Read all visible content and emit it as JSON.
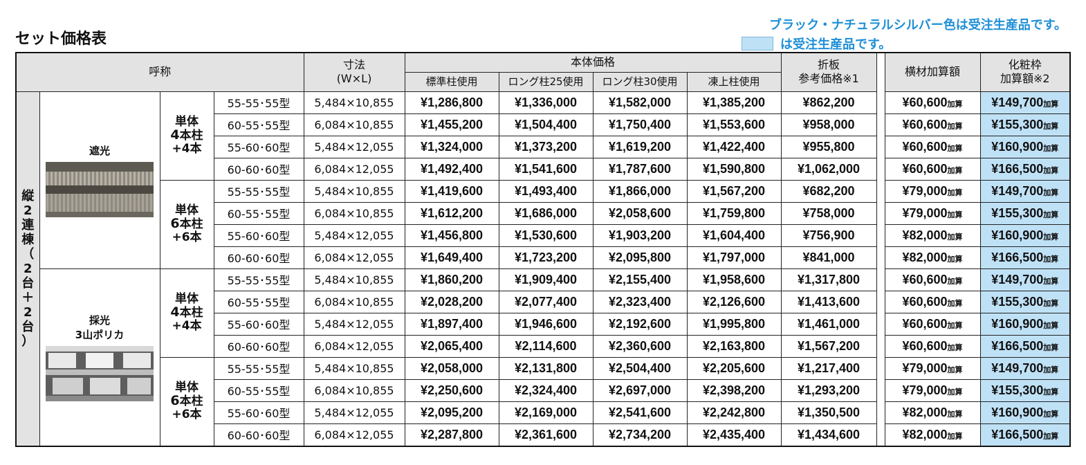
{
  "page": {
    "title": "セット価格表",
    "note_line1": "ブラック・ナチュラルシルバー色は受注生産品です。",
    "note_line2": "は受注生産品です。",
    "highlight_color": "#bfe1f6",
    "note_color": "#1e8fd6"
  },
  "header": {
    "name": "呼称",
    "size_line1": "寸法",
    "size_line2": "(W×L)",
    "body_price": "本体価格",
    "std": "標準柱使用",
    "long25": "ロング柱25使用",
    "long30": "ロング柱30使用",
    "frozen": "凍上柱使用",
    "orikata_line1": "折板",
    "orikata_line2": "参考価格※1",
    "beam": "横材加算額",
    "cosmetic_line1": "化粧枠",
    "cosmetic_line2": "加算額※2",
    "add_suffix": "加算"
  },
  "group_label": [
    "縦",
    "2",
    "連",
    "棟",
    "（",
    "2",
    "台",
    "＋",
    "2",
    "台",
    "）"
  ],
  "types": [
    {
      "label_line1": "遮光",
      "label_line2": "",
      "image_icon": "shading-panel-photo"
    },
    {
      "label_line1": "採光",
      "label_line2": "3山ポリカ",
      "image_icon": "polycarbonate-panel-photo"
    }
  ],
  "pillar_groups": [
    {
      "line1": "単体",
      "line2a": "4",
      "line2b": "本柱",
      "line3": "+4本"
    },
    {
      "line1": "単体",
      "line2a": "6",
      "line2b": "本柱",
      "line3": "+6本"
    },
    {
      "line1": "単体",
      "line2a": "4",
      "line2b": "本柱",
      "line3": "+4本"
    },
    {
      "line1": "単体",
      "line2a": "6",
      "line2b": "本柱",
      "line3": "+6本"
    }
  ],
  "rows": [
    {
      "model": "55-55･55型",
      "size": "5,484×10,855",
      "std": "¥1,286,800",
      "l25": "¥1,336,000",
      "l30": "¥1,582,000",
      "frz": "¥1,385,200",
      "ori": "¥862,200",
      "beam": "¥60,600",
      "cos": "¥149,700"
    },
    {
      "model": "60-55･55型",
      "size": "6,084×10,855",
      "std": "¥1,455,200",
      "l25": "¥1,504,400",
      "l30": "¥1,750,400",
      "frz": "¥1,553,600",
      "ori": "¥958,000",
      "beam": "¥60,600",
      "cos": "¥155,300"
    },
    {
      "model": "55-60･60型",
      "size": "5,484×12,055",
      "std": "¥1,324,000",
      "l25": "¥1,373,200",
      "l30": "¥1,619,200",
      "frz": "¥1,422,400",
      "ori": "¥955,800",
      "beam": "¥60,600",
      "cos": "¥160,900"
    },
    {
      "model": "60-60･60型",
      "size": "6,084×12,055",
      "std": "¥1,492,400",
      "l25": "¥1,541,600",
      "l30": "¥1,787,600",
      "frz": "¥1,590,800",
      "ori": "¥1,062,000",
      "beam": "¥60,600",
      "cos": "¥166,500"
    },
    {
      "model": "55-55･55型",
      "size": "5,484×10,855",
      "std": "¥1,419,600",
      "l25": "¥1,493,400",
      "l30": "¥1,866,000",
      "frz": "¥1,567,200",
      "ori": "¥682,200",
      "beam": "¥79,000",
      "cos": "¥149,700"
    },
    {
      "model": "60-55･55型",
      "size": "6,084×10,855",
      "std": "¥1,612,200",
      "l25": "¥1,686,000",
      "l30": "¥2,058,600",
      "frz": "¥1,759,800",
      "ori": "¥758,000",
      "beam": "¥79,000",
      "cos": "¥155,300"
    },
    {
      "model": "55-60･60型",
      "size": "5,484×12,055",
      "std": "¥1,456,800",
      "l25": "¥1,530,600",
      "l30": "¥1,903,200",
      "frz": "¥1,604,400",
      "ori": "¥756,900",
      "beam": "¥82,000",
      "cos": "¥160,900"
    },
    {
      "model": "60-60･60型",
      "size": "6,084×12,055",
      "std": "¥1,649,400",
      "l25": "¥1,723,200",
      "l30": "¥2,095,800",
      "frz": "¥1,797,000",
      "ori": "¥841,000",
      "beam": "¥82,000",
      "cos": "¥166,500"
    },
    {
      "model": "55-55･55型",
      "size": "5,484×10,855",
      "std": "¥1,860,200",
      "l25": "¥1,909,400",
      "l30": "¥2,155,400",
      "frz": "¥1,958,600",
      "ori": "¥1,317,800",
      "beam": "¥60,600",
      "cos": "¥149,700"
    },
    {
      "model": "60-55･55型",
      "size": "6,084×10,855",
      "std": "¥2,028,200",
      "l25": "¥2,077,400",
      "l30": "¥2,323,400",
      "frz": "¥2,126,600",
      "ori": "¥1,413,600",
      "beam": "¥60,600",
      "cos": "¥155,300"
    },
    {
      "model": "55-60･60型",
      "size": "5,484×12,055",
      "std": "¥1,897,400",
      "l25": "¥1,946,600",
      "l30": "¥2,192,600",
      "frz": "¥1,995,800",
      "ori": "¥1,461,000",
      "beam": "¥60,600",
      "cos": "¥160,900"
    },
    {
      "model": "60-60･60型",
      "size": "6,084×12,055",
      "std": "¥2,065,400",
      "l25": "¥2,114,600",
      "l30": "¥2,360,600",
      "frz": "¥2,163,800",
      "ori": "¥1,567,200",
      "beam": "¥60,600",
      "cos": "¥166,500"
    },
    {
      "model": "55-55･55型",
      "size": "5,484×10,855",
      "std": "¥2,058,000",
      "l25": "¥2,131,800",
      "l30": "¥2,504,400",
      "frz": "¥2,205,600",
      "ori": "¥1,217,400",
      "beam": "¥79,000",
      "cos": "¥149,700"
    },
    {
      "model": "60-55･55型",
      "size": "6,084×10,855",
      "std": "¥2,250,600",
      "l25": "¥2,324,400",
      "l30": "¥2,697,000",
      "frz": "¥2,398,200",
      "ori": "¥1,293,200",
      "beam": "¥79,000",
      "cos": "¥155,300"
    },
    {
      "model": "55-60･60型",
      "size": "5,484×12,055",
      "std": "¥2,095,200",
      "l25": "¥2,169,000",
      "l30": "¥2,541,600",
      "frz": "¥2,242,800",
      "ori": "¥1,350,500",
      "beam": "¥82,000",
      "cos": "¥160,900"
    },
    {
      "model": "60-60･60型",
      "size": "6,084×12,055",
      "std": "¥2,287,800",
      "l25": "¥2,361,600",
      "l30": "¥2,734,200",
      "frz": "¥2,435,400",
      "ori": "¥1,434,600",
      "beam": "¥82,000",
      "cos": "¥166,500"
    }
  ]
}
